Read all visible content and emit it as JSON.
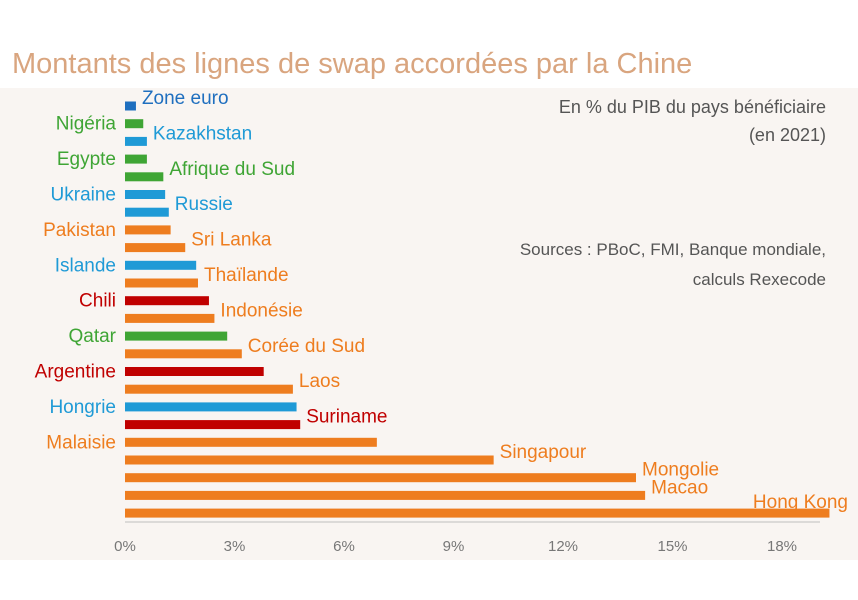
{
  "title": "Montants des lignes de swap accordées par la Chine",
  "subtitle_line1": "En % du PIB du pays bénéficiaire",
  "subtitle_line2": "(en 2021)",
  "source_line1": "Sources : PBoC, FMI, Banque mondiale,",
  "source_line2": "calculs Rexecode",
  "colors": {
    "title": "#d9a57f",
    "eurozone": "#1f6fbf",
    "blue": "#1f9ad6",
    "green": "#3fa535",
    "orange": "#ee7d1f",
    "red": "#c00000",
    "axis_text": "#777777"
  },
  "chart_data": {
    "type": "bar",
    "orientation": "horizontal",
    "unit": "%",
    "xlim": [
      0,
      20
    ],
    "ticks": [
      0,
      3,
      6,
      9,
      12,
      15,
      18
    ],
    "tick_labels": [
      "0%",
      "3%",
      "6%",
      "9%",
      "12%",
      "15%",
      "18%"
    ],
    "categories": [
      "Zone euro",
      "Nigéria",
      "Kazakhstan",
      "Egypte",
      "Afrique du Sud",
      "Ukraine",
      "Russie",
      "Pakistan",
      "Sri Lanka",
      "Islande",
      "Thaïlande",
      "Chili",
      "Indonésie",
      "Qatar",
      "Corée du Sud",
      "Argentine",
      "Laos",
      "Hongrie",
      "Suriname",
      "Malaisie",
      "Singapour",
      "Mongolie",
      "Macao",
      "Hong Kong"
    ],
    "values": [
      0.3,
      0.5,
      0.6,
      0.6,
      1.05,
      1.1,
      1.2,
      1.25,
      1.65,
      1.95,
      2.0,
      2.3,
      2.45,
      2.8,
      3.2,
      3.8,
      4.6,
      4.7,
      4.8,
      6.9,
      10.1,
      14.0,
      14.25,
      19.3
    ],
    "color_groups": [
      "eurozone",
      "green",
      "blue",
      "green",
      "green",
      "blue",
      "blue",
      "orange",
      "orange",
      "blue",
      "orange",
      "red",
      "orange",
      "green",
      "orange",
      "red",
      "orange",
      "blue",
      "red",
      "orange",
      "orange",
      "orange",
      "orange",
      "orange"
    ],
    "label_side": [
      "right",
      "left",
      "right",
      "left",
      "right",
      "left",
      "right",
      "left",
      "right",
      "left",
      "right",
      "left",
      "right",
      "left",
      "right",
      "left",
      "right",
      "left",
      "right",
      "left",
      "right",
      "right",
      "right",
      "right"
    ]
  }
}
